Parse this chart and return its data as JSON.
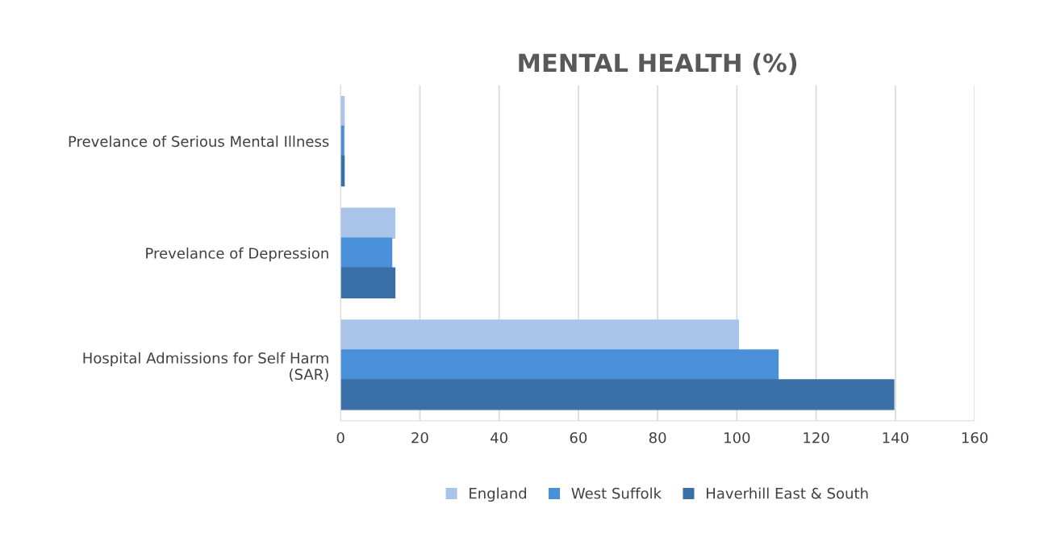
{
  "chart_data": {
    "type": "bar",
    "orientation": "horizontal",
    "title": "MENTAL HEALTH (%)",
    "categories": [
      "Prevelance of Serious Mental Illness",
      "Prevelance of Depression",
      "Hospital Admissions for Self Harm\n(SAR)"
    ],
    "series": [
      {
        "name": "England",
        "color": "#a9c4e8",
        "values": [
          0.9,
          13.7,
          100.4
        ]
      },
      {
        "name": "West Suffolk",
        "color": "#4a90d9",
        "values": [
          0.8,
          12.9,
          110.4
        ]
      },
      {
        "name": "Haverhill East & South",
        "color": "#3a6fa8",
        "values": [
          0.9,
          13.7,
          139.6
        ]
      }
    ],
    "xlim": [
      0,
      160
    ],
    "xticks": [
      0,
      20,
      40,
      60,
      80,
      100,
      120,
      140,
      160
    ],
    "grid": "x",
    "legend": "bottom"
  }
}
